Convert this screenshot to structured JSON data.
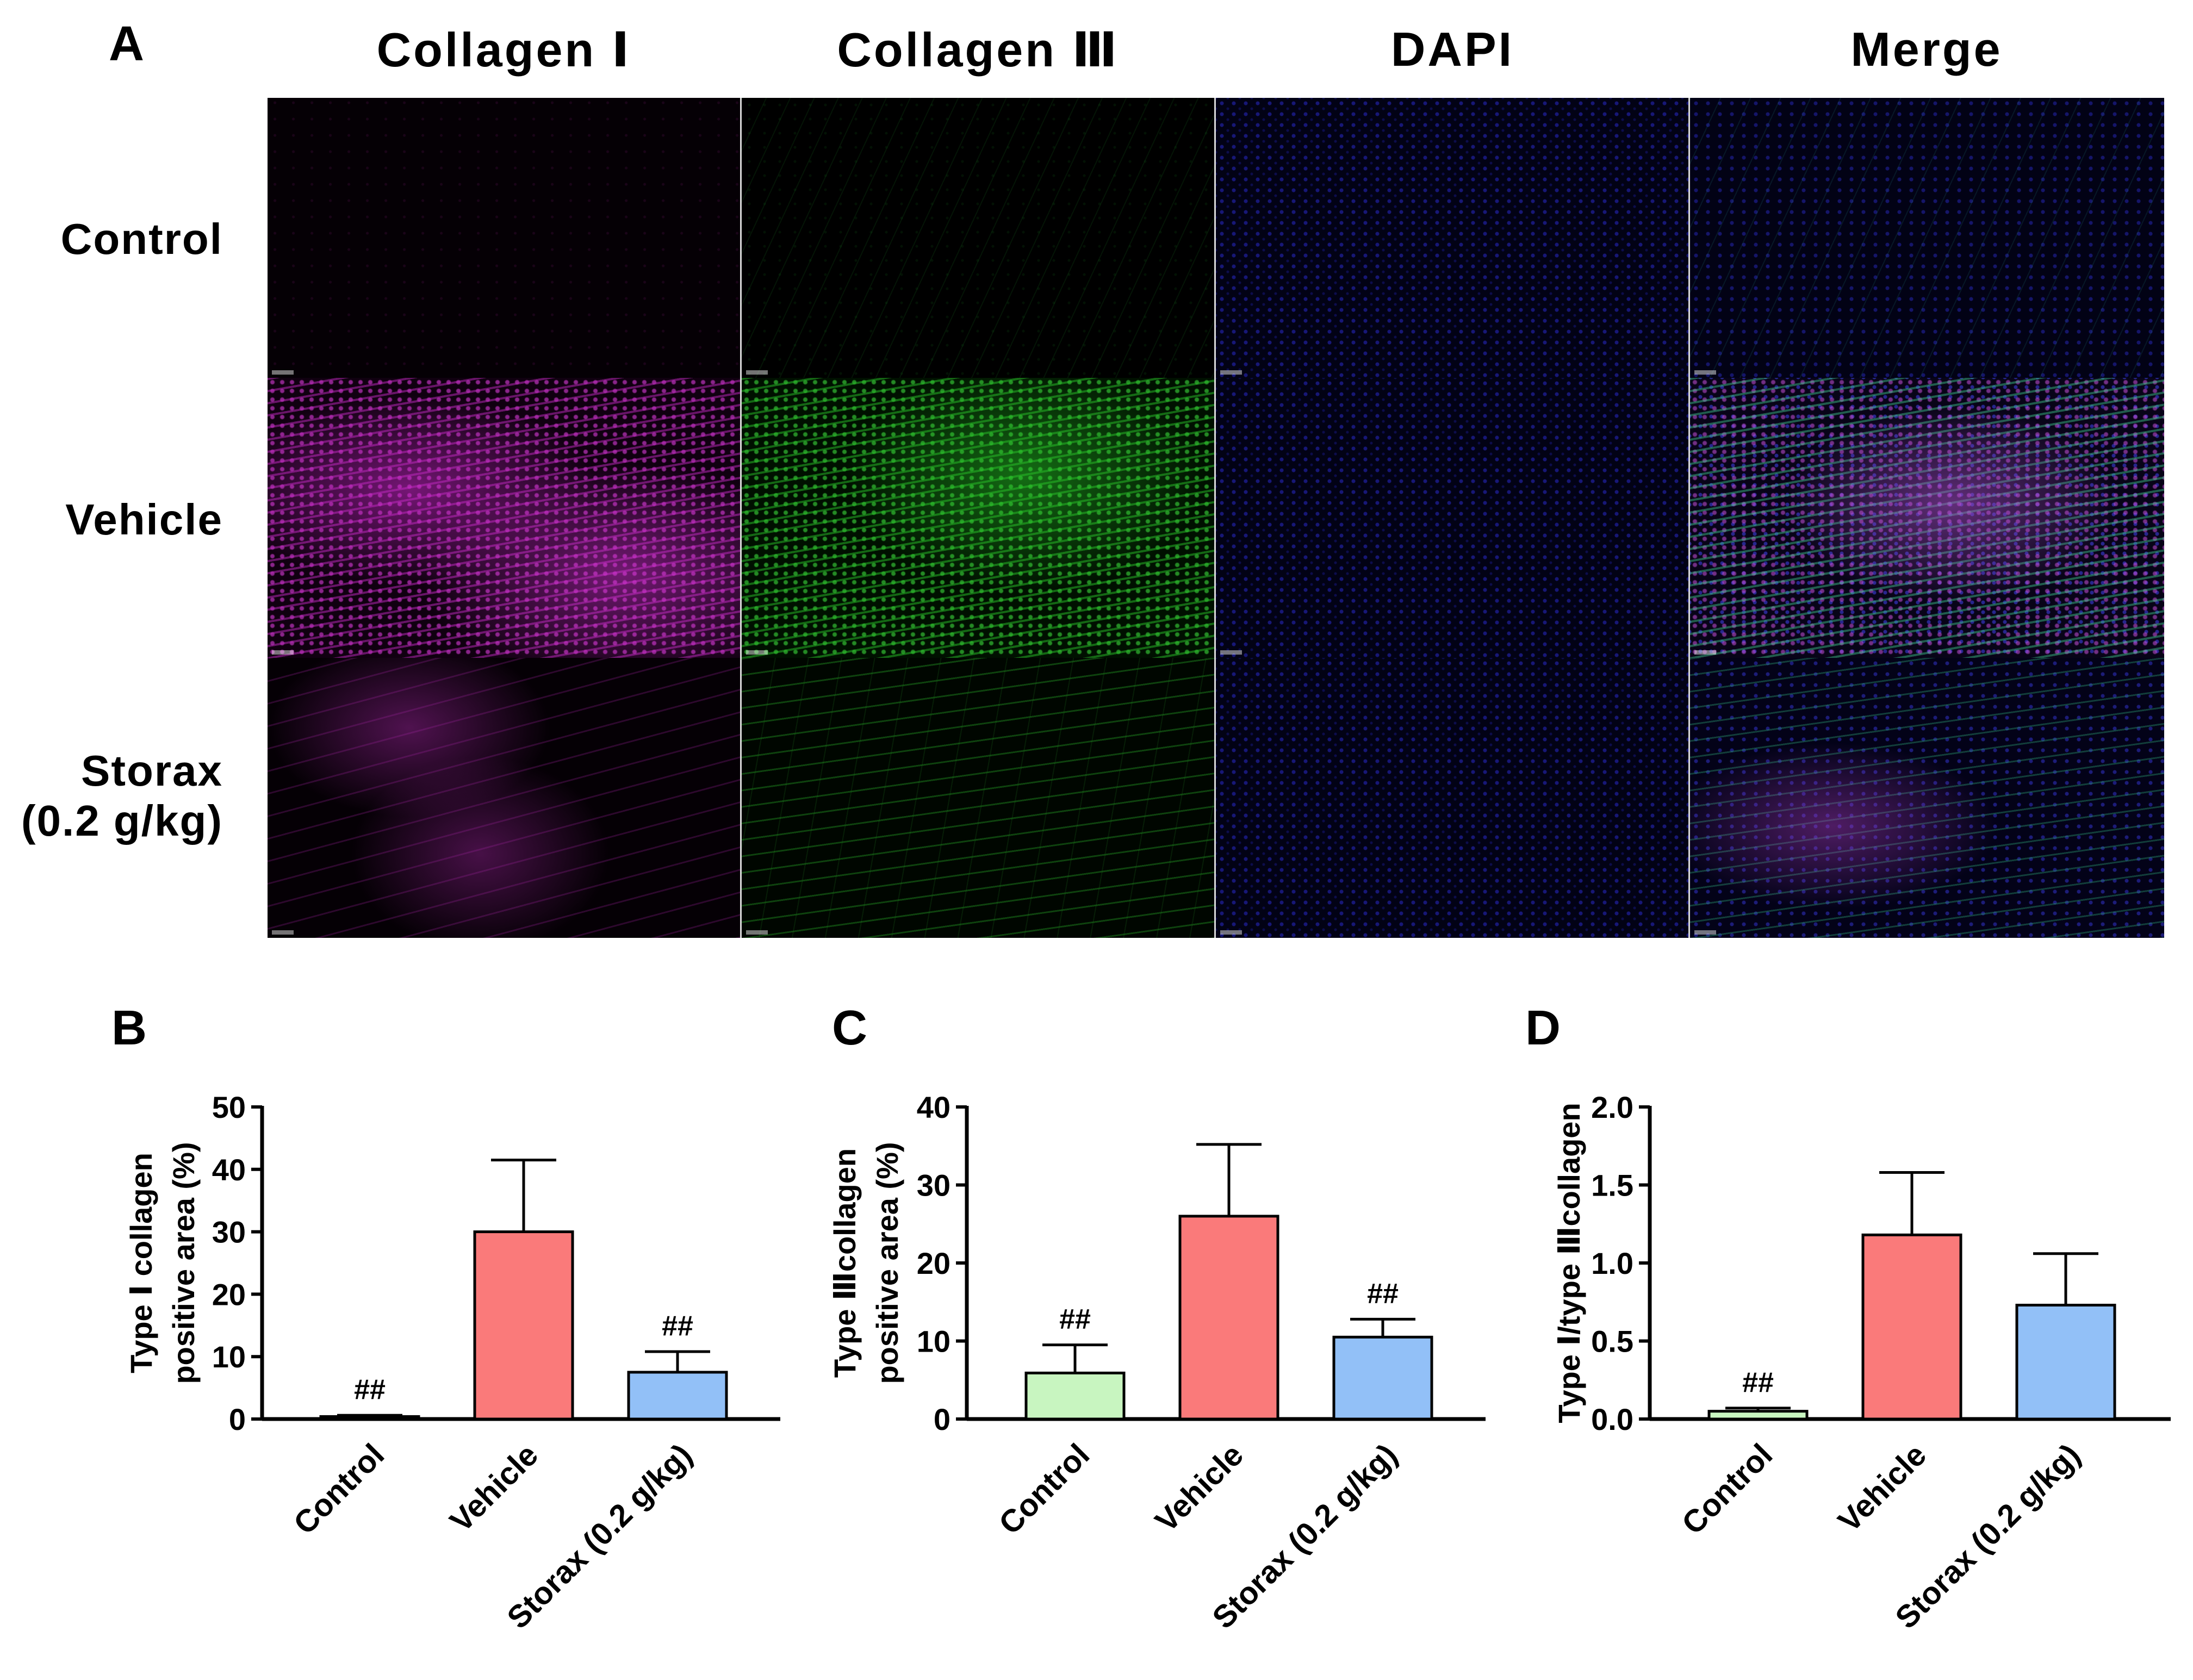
{
  "panel_a": {
    "letter": "A",
    "columns": [
      "Collagen Ⅰ",
      "Collagen Ⅲ",
      "DAPI",
      "Merge"
    ],
    "rows": [
      {
        "label_lines": [
          "Control"
        ]
      },
      {
        "label_lines": [
          "Vehicle"
        ]
      },
      {
        "label_lines": [
          "Storax",
          "(0.2 g/kg)"
        ]
      }
    ]
  },
  "chart_data": [
    {
      "panel": "B",
      "type": "bar",
      "ylabel_lines": [
        "Type Ⅰ collagen",
        "positive area (%)"
      ],
      "categories": [
        "Control",
        "Vehicle",
        "Storax (0.2 g/kg)"
      ],
      "values": [
        0.4,
        30.0,
        7.5
      ],
      "errors": [
        0.2,
        11.5,
        3.3
      ],
      "colors": [
        "#c8f5c0",
        "#fa7a7a",
        "#92c0f7"
      ],
      "annotations": [
        "##",
        "",
        "##"
      ],
      "ylim": [
        0,
        50
      ],
      "yticks": [
        0,
        10,
        20,
        30,
        40,
        50
      ],
      "ytick_labels": [
        "0",
        "10",
        "20",
        "30",
        "40",
        "50"
      ]
    },
    {
      "panel": "C",
      "type": "bar",
      "ylabel_lines": [
        "Type Ⅲcollagen",
        "positive area (%)"
      ],
      "categories": [
        "Control",
        "Vehicle",
        "Storax (0.2 g/kg)"
      ],
      "values": [
        5.9,
        26.0,
        10.5
      ],
      "errors": [
        3.6,
        9.2,
        2.3
      ],
      "colors": [
        "#c8f5c0",
        "#fa7a7a",
        "#92c0f7"
      ],
      "annotations": [
        "##",
        "",
        "##"
      ],
      "ylim": [
        0,
        40
      ],
      "yticks": [
        0,
        10,
        20,
        30,
        40
      ],
      "ytick_labels": [
        "0",
        "10",
        "20",
        "30",
        "40"
      ]
    },
    {
      "panel": "D",
      "type": "bar",
      "ylabel_lines": [
        "Type Ⅰ/type Ⅲcollagen"
      ],
      "categories": [
        "Control",
        "Vehicle",
        "Storax (0.2 g/kg)"
      ],
      "values": [
        0.05,
        1.18,
        0.73
      ],
      "errors": [
        0.02,
        0.4,
        0.33
      ],
      "colors": [
        "#c8f5c0",
        "#fa7a7a",
        "#92c0f7"
      ],
      "annotations": [
        "##",
        "",
        ""
      ],
      "ylim": [
        0,
        2.0
      ],
      "yticks": [
        0,
        0.5,
        1.0,
        1.5,
        2.0
      ],
      "ytick_labels": [
        "0.0",
        "0.5",
        "1.0",
        "1.5",
        "2.0"
      ]
    }
  ]
}
